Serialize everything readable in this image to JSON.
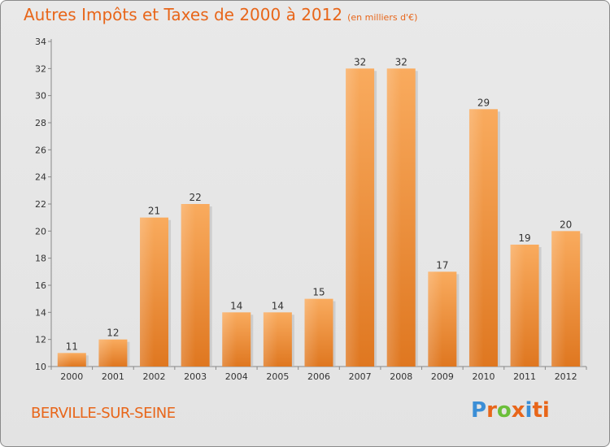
{
  "header": {
    "title": "Autres Impôts et Taxes de 2000 à 2012",
    "unit": "(en milliers d'€)"
  },
  "footer": {
    "commune": "BERVILLE-SUR-SEINE",
    "logo": "Proxiti",
    "logo_colors": [
      "#3b8ed6",
      "#e8661a",
      "#6bbf3a",
      "#e8661a",
      "#3b8ed6",
      "#e8661a",
      "#e8661a"
    ]
  },
  "colors": {
    "accent": "#e8661a",
    "bar_light": "#f7a456",
    "bar_dark": "#e07a22"
  },
  "chart_data": {
    "type": "bar",
    "categories": [
      "2000",
      "2001",
      "2002",
      "2003",
      "2004",
      "2005",
      "2006",
      "2007",
      "2008",
      "2009",
      "2010",
      "2011",
      "2012"
    ],
    "values": [
      11,
      12,
      21,
      22,
      14,
      14,
      15,
      32,
      32,
      17,
      29,
      19,
      20
    ],
    "ylim": [
      10,
      34
    ],
    "yticks": [
      10,
      12,
      14,
      16,
      18,
      20,
      22,
      24,
      26,
      28,
      30,
      32,
      34
    ],
    "grid": false,
    "data_labels": true
  }
}
